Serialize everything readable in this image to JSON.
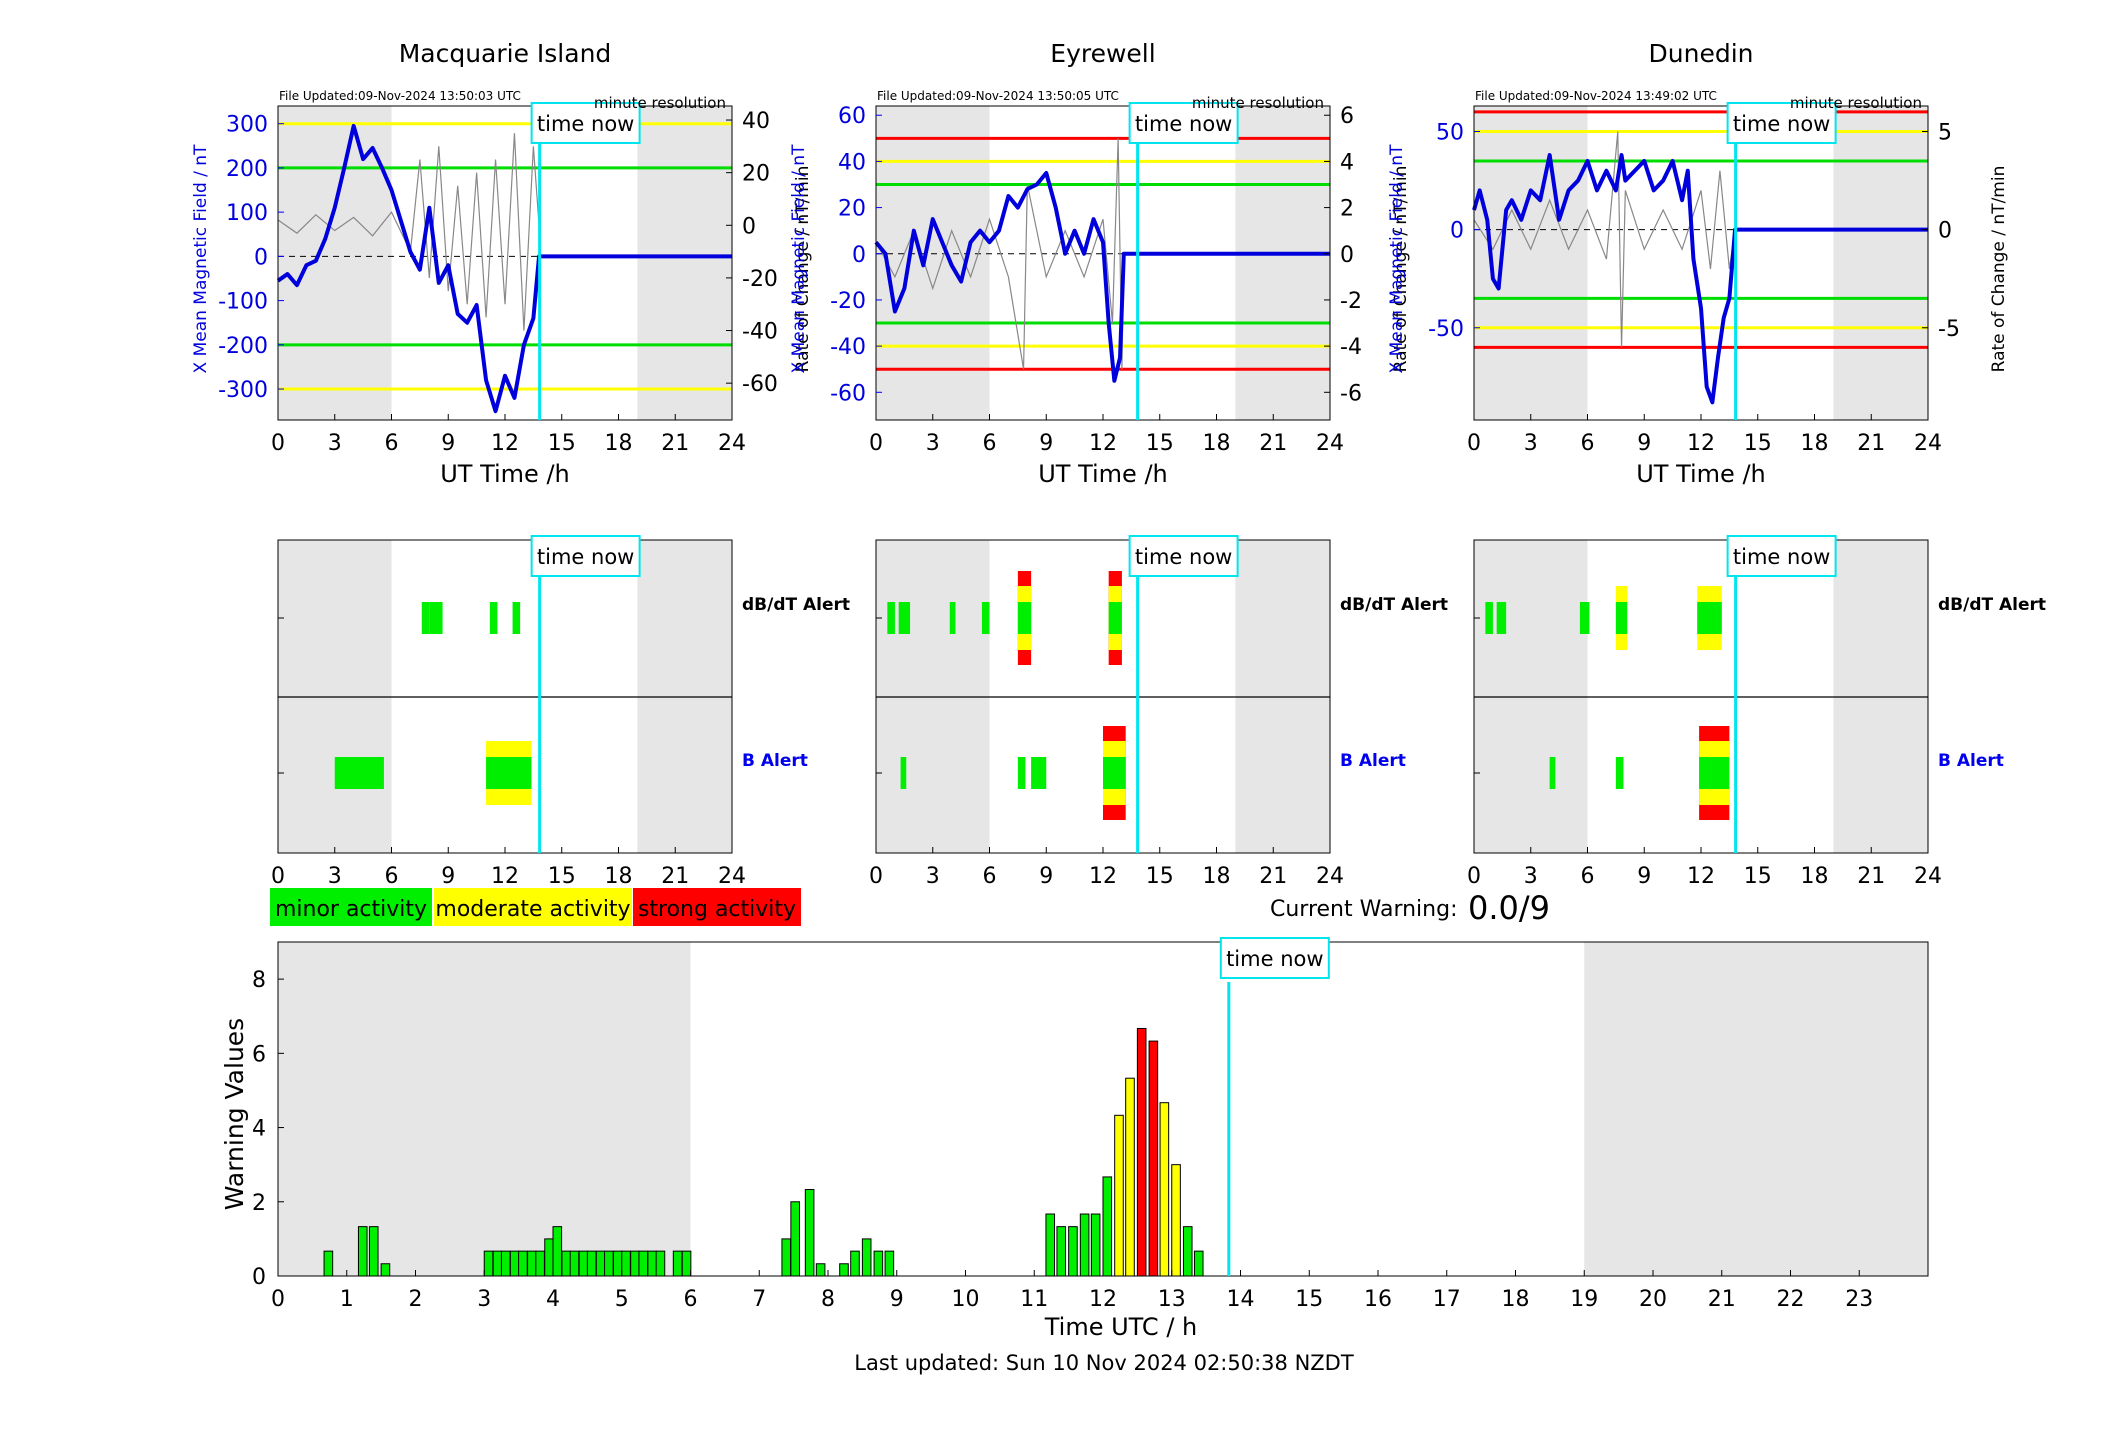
{
  "top_panels": [
    {
      "title": "Macquarie Island",
      "file_updated": "File Updated:09-Nov-2024 13:50:03 UTC",
      "resolution": "minute resolution",
      "left_ylabel": "X Mean Magnetic Field / nT",
      "right_ylabel": "Rate of Change / nT/min",
      "xlabel": "UT Time /h",
      "time_now_label": "time now",
      "left_ylim": [
        -370,
        340
      ],
      "left_ticks": [
        -300,
        -200,
        -100,
        0,
        100,
        200,
        300
      ],
      "right_ticks": [
        -60,
        -40,
        -20,
        0,
        20,
        40
      ],
      "thresholds": [
        {
          "value": 300,
          "color": "#ffff00"
        },
        {
          "value": 200,
          "color": "#00dd00"
        },
        {
          "value": -200,
          "color": "#00dd00"
        },
        {
          "value": -300,
          "color": "#ffff00"
        }
      ],
      "field_series": [
        [
          0,
          -55
        ],
        [
          0.5,
          -40
        ],
        [
          1,
          -65
        ],
        [
          1.5,
          -20
        ],
        [
          2,
          -10
        ],
        [
          2.5,
          40
        ],
        [
          3,
          110
        ],
        [
          3.5,
          200
        ],
        [
          4,
          295
        ],
        [
          4.5,
          220
        ],
        [
          5,
          245
        ],
        [
          5.5,
          200
        ],
        [
          6,
          150
        ],
        [
          6.5,
          80
        ],
        [
          7,
          10
        ],
        [
          7.5,
          -30
        ],
        [
          8,
          110
        ],
        [
          8.5,
          -60
        ],
        [
          9,
          -20
        ],
        [
          9.5,
          -130
        ],
        [
          10,
          -150
        ],
        [
          10.5,
          -110
        ],
        [
          11,
          -280
        ],
        [
          11.5,
          -350
        ],
        [
          12,
          -270
        ],
        [
          12.5,
          -320
        ],
        [
          13,
          -200
        ],
        [
          13.5,
          -140
        ],
        [
          13.8,
          0
        ],
        [
          24,
          0
        ]
      ],
      "rate_series": [
        [
          0,
          2
        ],
        [
          1,
          -3
        ],
        [
          2,
          4
        ],
        [
          3,
          -2
        ],
        [
          4,
          3
        ],
        [
          5,
          -4
        ],
        [
          6,
          5
        ],
        [
          7,
          -10
        ],
        [
          7.5,
          25
        ],
        [
          8,
          -20
        ],
        [
          8.5,
          30
        ],
        [
          9,
          -25
        ],
        [
          9.5,
          15
        ],
        [
          10,
          -30
        ],
        [
          10.5,
          20
        ],
        [
          11,
          -35
        ],
        [
          11.5,
          25
        ],
        [
          12,
          -30
        ],
        [
          12.5,
          35
        ],
        [
          13,
          -40
        ],
        [
          13.5,
          30
        ],
        [
          13.8,
          0
        ]
      ]
    },
    {
      "title": "Eyrewell",
      "file_updated": "File Updated:09-Nov-2024 13:50:05 UTC",
      "resolution": "minute resolution",
      "left_ylabel": "X Mean Magnetic Field / nT",
      "right_ylabel": "Rate of Change / nT/min",
      "xlabel": "UT Time /h",
      "time_now_label": "time now",
      "left_ylim": [
        -72,
        64
      ],
      "left_ticks": [
        -60,
        -40,
        -20,
        0,
        20,
        40,
        60
      ],
      "right_ticks": [
        -6,
        -4,
        -2,
        0,
        2,
        4,
        6
      ],
      "thresholds": [
        {
          "value": 50,
          "color": "#ff0000"
        },
        {
          "value": 40,
          "color": "#ffff00"
        },
        {
          "value": 30,
          "color": "#00dd00"
        },
        {
          "value": -30,
          "color": "#00dd00"
        },
        {
          "value": -40,
          "color": "#ffff00"
        },
        {
          "value": -50,
          "color": "#ff0000"
        }
      ],
      "field_series": [
        [
          0,
          5
        ],
        [
          0.5,
          0
        ],
        [
          1,
          -25
        ],
        [
          1.5,
          -15
        ],
        [
          2,
          10
        ],
        [
          2.5,
          -5
        ],
        [
          3,
          15
        ],
        [
          3.5,
          5
        ],
        [
          4,
          -5
        ],
        [
          4.5,
          -12
        ],
        [
          5,
          5
        ],
        [
          5.5,
          10
        ],
        [
          6,
          5
        ],
        [
          6.5,
          10
        ],
        [
          7,
          25
        ],
        [
          7.5,
          20
        ],
        [
          8,
          28
        ],
        [
          8.5,
          30
        ],
        [
          9,
          35
        ],
        [
          9.5,
          20
        ],
        [
          10,
          0
        ],
        [
          10.5,
          10
        ],
        [
          11,
          0
        ],
        [
          11.5,
          15
        ],
        [
          12,
          5
        ],
        [
          12.3,
          -30
        ],
        [
          12.6,
          -55
        ],
        [
          12.9,
          -45
        ],
        [
          13.1,
          0
        ],
        [
          24,
          0
        ]
      ],
      "rate_series": [
        [
          0,
          0.5
        ],
        [
          1,
          -1
        ],
        [
          2,
          1
        ],
        [
          3,
          -1.5
        ],
        [
          4,
          1
        ],
        [
          5,
          -1
        ],
        [
          6,
          1.5
        ],
        [
          7,
          -1
        ],
        [
          7.8,
          -5
        ],
        [
          8,
          3
        ],
        [
          9,
          -1
        ],
        [
          10,
          1
        ],
        [
          11,
          -1
        ],
        [
          12,
          1.5
        ],
        [
          12.5,
          -3
        ],
        [
          12.8,
          5
        ],
        [
          13,
          -5
        ],
        [
          13.1,
          0
        ]
      ]
    },
    {
      "title": "Dunedin",
      "file_updated": "File Updated:09-Nov-2024 13:49:02 UTC",
      "resolution": "minute resolution",
      "left_ylabel": "X Mean Magnetic Field / nT",
      "right_ylabel": "Rate of Change / nT/min",
      "xlabel": "UT Time /h",
      "time_now_label": "time now",
      "left_ylim": [
        -97,
        63
      ],
      "left_ticks": [
        -50,
        0,
        50
      ],
      "right_ticks": [
        -5,
        0,
        5
      ],
      "thresholds": [
        {
          "value": 60,
          "color": "#ff0000"
        },
        {
          "value": 50,
          "color": "#ffff00"
        },
        {
          "value": 35,
          "color": "#00dd00"
        },
        {
          "value": -35,
          "color": "#00dd00"
        },
        {
          "value": -50,
          "color": "#ffff00"
        },
        {
          "value": -60,
          "color": "#ff0000"
        }
      ],
      "field_series": [
        [
          0,
          10
        ],
        [
          0.3,
          20
        ],
        [
          0.7,
          5
        ],
        [
          1,
          -25
        ],
        [
          1.3,
          -30
        ],
        [
          1.7,
          10
        ],
        [
          2,
          15
        ],
        [
          2.5,
          5
        ],
        [
          3,
          20
        ],
        [
          3.5,
          15
        ],
        [
          4,
          38
        ],
        [
          4.5,
          5
        ],
        [
          5,
          20
        ],
        [
          5.5,
          25
        ],
        [
          6,
          35
        ],
        [
          6.5,
          20
        ],
        [
          7,
          30
        ],
        [
          7.5,
          20
        ],
        [
          7.8,
          38
        ],
        [
          8,
          25
        ],
        [
          8.5,
          30
        ],
        [
          9,
          35
        ],
        [
          9.5,
          20
        ],
        [
          10,
          25
        ],
        [
          10.5,
          35
        ],
        [
          11,
          15
        ],
        [
          11.3,
          30
        ],
        [
          11.6,
          -15
        ],
        [
          12,
          -40
        ],
        [
          12.3,
          -80
        ],
        [
          12.6,
          -88
        ],
        [
          12.9,
          -65
        ],
        [
          13.2,
          -45
        ],
        [
          13.5,
          -35
        ],
        [
          13.8,
          0
        ],
        [
          24,
          0
        ]
      ],
      "rate_series": [
        [
          0,
          0.5
        ],
        [
          1,
          -1
        ],
        [
          2,
          1
        ],
        [
          3,
          -1
        ],
        [
          4,
          1.5
        ],
        [
          5,
          -1
        ],
        [
          6,
          1
        ],
        [
          7,
          -1.5
        ],
        [
          7.6,
          5
        ],
        [
          7.8,
          -6
        ],
        [
          8,
          2
        ],
        [
          9,
          -1
        ],
        [
          10,
          1
        ],
        [
          11,
          -1
        ],
        [
          12,
          2
        ],
        [
          12.5,
          -2
        ],
        [
          13,
          3
        ],
        [
          13.5,
          -2
        ],
        [
          13.8,
          0
        ]
      ]
    }
  ],
  "alert_panels": [
    {
      "dbdt_label": "dB/dT Alert",
      "b_label": "B Alert",
      "time_now_label": "time now",
      "dbdt_blocks": [
        {
          "start": 7.6,
          "end": 8.0,
          "level": "minor"
        },
        {
          "start": 8.0,
          "end": 8.7,
          "level": "minor"
        },
        {
          "start": 11.2,
          "end": 11.6,
          "level": "minor"
        },
        {
          "start": 12.4,
          "end": 12.8,
          "level": "minor"
        }
      ],
      "b_blocks": [
        {
          "start": 3.0,
          "end": 5.6,
          "level": "minor"
        },
        {
          "start": 11.0,
          "end": 13.4,
          "level": "minor",
          "yellow": true
        }
      ]
    },
    {
      "dbdt_label": "dB/dT Alert",
      "b_label": "B Alert",
      "time_now_label": "time now",
      "dbdt_blocks": [
        {
          "start": 0.6,
          "end": 1.0,
          "level": "minor"
        },
        {
          "start": 1.2,
          "end": 1.8,
          "level": "minor"
        },
        {
          "start": 3.9,
          "end": 4.2,
          "level": "minor"
        },
        {
          "start": 5.6,
          "end": 6.0,
          "level": "minor"
        },
        {
          "start": 7.5,
          "end": 8.2,
          "level": "strong"
        },
        {
          "start": 12.3,
          "end": 13.0,
          "level": "strong"
        }
      ],
      "b_blocks": [
        {
          "start": 1.3,
          "end": 1.6,
          "level": "minor"
        },
        {
          "start": 7.5,
          "end": 7.9,
          "level": "minor"
        },
        {
          "start": 8.2,
          "end": 9.0,
          "level": "minor"
        },
        {
          "start": 12.0,
          "end": 13.2,
          "level": "strong"
        }
      ]
    },
    {
      "dbdt_label": "dB/dT Alert",
      "b_label": "B Alert",
      "time_now_label": "time now",
      "dbdt_blocks": [
        {
          "start": 0.6,
          "end": 1.0,
          "level": "minor"
        },
        {
          "start": 1.2,
          "end": 1.7,
          "level": "minor"
        },
        {
          "start": 5.6,
          "end": 6.1,
          "level": "minor"
        },
        {
          "start": 7.5,
          "end": 8.1,
          "level": "moderate"
        },
        {
          "start": 11.8,
          "end": 13.1,
          "level": "moderate"
        }
      ],
      "b_blocks": [
        {
          "start": 4.0,
          "end": 4.3,
          "level": "minor"
        },
        {
          "start": 7.5,
          "end": 7.9,
          "level": "minor"
        },
        {
          "start": 11.9,
          "end": 13.5,
          "level": "strong"
        }
      ]
    }
  ],
  "x_ticks_24": [
    0,
    3,
    6,
    9,
    12,
    15,
    18,
    21,
    24
  ],
  "legend": {
    "minor": "minor activity",
    "moderate": "moderate activity",
    "strong": "strong activity"
  },
  "current_warning": {
    "label": "Current Warning:",
    "value": "0.0/9"
  },
  "colors": {
    "minor": "#00ee00",
    "moderate": "#ffff00",
    "strong": "#ff0000",
    "night": "#e6e6e6",
    "time_now": "#00e5ee",
    "field": "#0000dd"
  },
  "time_now_hour": 13.83,
  "night_shading": [
    [
      0,
      6
    ],
    [
      19,
      24
    ]
  ],
  "chart_data": {
    "type": "bar",
    "title": "",
    "xlabel": "Time UTC / h",
    "ylabel": "Warning Values",
    "xlim": [
      0,
      24
    ],
    "ylim": [
      0,
      9
    ],
    "x_ticks": [
      0,
      1,
      2,
      3,
      4,
      5,
      6,
      7,
      8,
      9,
      10,
      11,
      12,
      13,
      14,
      15,
      16,
      17,
      18,
      19,
      20,
      21,
      22,
      23
    ],
    "y_ticks": [
      0,
      2,
      4,
      6,
      8
    ],
    "bin_width_h": 0.125,
    "bars": [
      {
        "x": 0.67,
        "value": 0.67,
        "level": "minor"
      },
      {
        "x": 1.17,
        "value": 1.33,
        "level": "minor"
      },
      {
        "x": 1.33,
        "value": 1.33,
        "level": "minor"
      },
      {
        "x": 1.5,
        "value": 0.33,
        "level": "minor"
      },
      {
        "x": 3.0,
        "value": 0.67,
        "level": "minor"
      },
      {
        "x": 3.13,
        "value": 0.67,
        "level": "minor"
      },
      {
        "x": 3.25,
        "value": 0.67,
        "level": "minor"
      },
      {
        "x": 3.38,
        "value": 0.67,
        "level": "minor"
      },
      {
        "x": 3.5,
        "value": 0.67,
        "level": "minor"
      },
      {
        "x": 3.63,
        "value": 0.67,
        "level": "minor"
      },
      {
        "x": 3.75,
        "value": 0.67,
        "level": "minor"
      },
      {
        "x": 3.88,
        "value": 1.0,
        "level": "minor"
      },
      {
        "x": 4.0,
        "value": 1.33,
        "level": "minor"
      },
      {
        "x": 4.13,
        "value": 0.67,
        "level": "minor"
      },
      {
        "x": 4.25,
        "value": 0.67,
        "level": "minor"
      },
      {
        "x": 4.38,
        "value": 0.67,
        "level": "minor"
      },
      {
        "x": 4.5,
        "value": 0.67,
        "level": "minor"
      },
      {
        "x": 4.63,
        "value": 0.67,
        "level": "minor"
      },
      {
        "x": 4.75,
        "value": 0.67,
        "level": "minor"
      },
      {
        "x": 4.88,
        "value": 0.67,
        "level": "minor"
      },
      {
        "x": 5.0,
        "value": 0.67,
        "level": "minor"
      },
      {
        "x": 5.13,
        "value": 0.67,
        "level": "minor"
      },
      {
        "x": 5.25,
        "value": 0.67,
        "level": "minor"
      },
      {
        "x": 5.38,
        "value": 0.67,
        "level": "minor"
      },
      {
        "x": 5.5,
        "value": 0.67,
        "level": "minor"
      },
      {
        "x": 5.75,
        "value": 0.67,
        "level": "minor"
      },
      {
        "x": 5.88,
        "value": 0.67,
        "level": "minor"
      },
      {
        "x": 7.33,
        "value": 1.0,
        "level": "minor"
      },
      {
        "x": 7.46,
        "value": 2.0,
        "level": "minor"
      },
      {
        "x": 7.67,
        "value": 2.33,
        "level": "minor"
      },
      {
        "x": 7.83,
        "value": 0.33,
        "level": "minor"
      },
      {
        "x": 8.17,
        "value": 0.33,
        "level": "minor"
      },
      {
        "x": 8.33,
        "value": 0.67,
        "level": "minor"
      },
      {
        "x": 8.5,
        "value": 1.0,
        "level": "minor"
      },
      {
        "x": 8.67,
        "value": 0.67,
        "level": "minor"
      },
      {
        "x": 8.83,
        "value": 0.67,
        "level": "minor"
      },
      {
        "x": 11.17,
        "value": 1.67,
        "level": "minor"
      },
      {
        "x": 11.33,
        "value": 1.33,
        "level": "minor"
      },
      {
        "x": 11.5,
        "value": 1.33,
        "level": "minor"
      },
      {
        "x": 11.67,
        "value": 1.67,
        "level": "minor"
      },
      {
        "x": 11.83,
        "value": 1.67,
        "level": "minor"
      },
      {
        "x": 12.0,
        "value": 2.67,
        "level": "minor"
      },
      {
        "x": 12.17,
        "value": 4.33,
        "level": "moderate"
      },
      {
        "x": 12.33,
        "value": 5.33,
        "level": "moderate"
      },
      {
        "x": 12.5,
        "value": 6.67,
        "level": "strong"
      },
      {
        "x": 12.67,
        "value": 6.33,
        "level": "strong"
      },
      {
        "x": 12.83,
        "value": 4.67,
        "level": "moderate"
      },
      {
        "x": 13.0,
        "value": 3.0,
        "level": "moderate"
      },
      {
        "x": 13.17,
        "value": 1.33,
        "level": "minor"
      },
      {
        "x": 13.33,
        "value": 0.67,
        "level": "minor"
      }
    ],
    "night_shading": [
      [
        0,
        6
      ],
      [
        19,
        24
      ]
    ],
    "time_now": 13.83,
    "time_now_label": "time now"
  },
  "footer": {
    "last_updated": "Last updated: Sun 10 Nov 2024 02:50:38 NZDT"
  }
}
